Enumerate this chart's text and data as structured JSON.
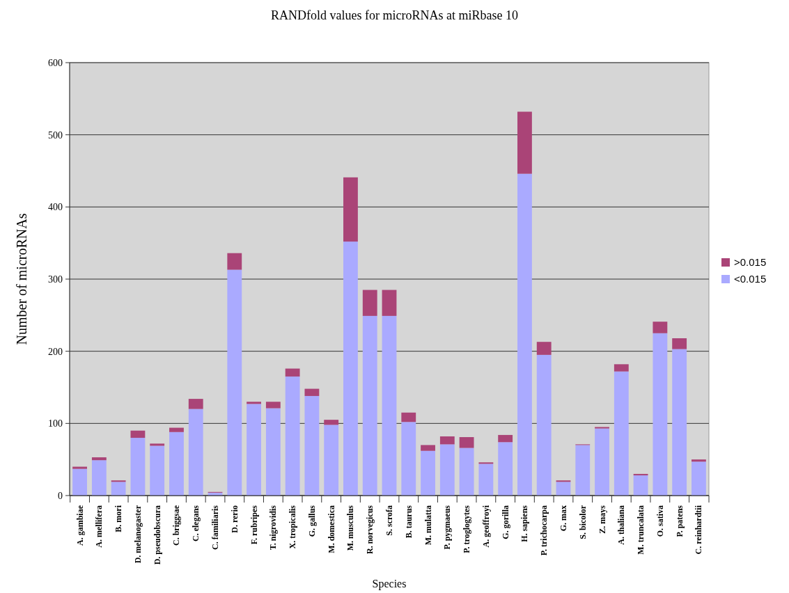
{
  "chart_data": {
    "type": "bar",
    "title": "RANDfold values for microRNAs at miRbase 10",
    "xlabel": "Species",
    "ylabel": "Number of microRNAs",
    "categories": [
      "A. gambiae",
      "A. mellifera",
      "B. mori",
      "D. melanogaster",
      "D. pseudobscura",
      "C. briggsae",
      "C. elegans",
      "C. familiaris",
      "D. rerio",
      "F. rubripes",
      "T. nigrovidis",
      "X. tropicalis",
      "G. gallus",
      "M. domestica",
      "M. musculus",
      "R. norvegicus",
      "S. scrofa",
      "B. taurus",
      "M. mulatta",
      "P. pygmaeus",
      "P. troglogytes",
      "A. geoffroyi",
      "G. gorilla",
      "H. sapiens",
      "P. trichocarpa",
      "G. max",
      "S. bicolor",
      "Z. mays",
      "A. thaliana",
      "M. truncalata",
      "O. sativa",
      "P. patens",
      "C. reinhardtii"
    ],
    "series": [
      {
        "name": "<0.015",
        "color": "#aaaaff",
        "values": [
          37,
          49,
          19,
          80,
          69,
          88,
          120,
          4,
          313,
          127,
          121,
          165,
          138,
          98,
          352,
          249,
          249,
          102,
          62,
          71,
          66,
          44,
          74,
          446,
          195,
          19,
          70,
          93,
          172,
          28,
          225,
          203,
          47
        ]
      },
      {
        "name": ">0.015",
        "color": "#aa4477",
        "values": [
          3,
          4,
          2,
          10,
          3,
          6,
          14,
          1,
          23,
          3,
          9,
          11,
          10,
          7,
          89,
          36,
          36,
          13,
          8,
          11,
          15,
          2,
          10,
          86,
          18,
          2,
          1,
          2,
          10,
          2,
          16,
          15,
          3
        ]
      }
    ],
    "stacked": true,
    "ylim": [
      0,
      600
    ],
    "yticks": [
      0,
      100,
      200,
      300,
      400,
      500,
      600
    ],
    "grid": "y",
    "legend": "right"
  }
}
